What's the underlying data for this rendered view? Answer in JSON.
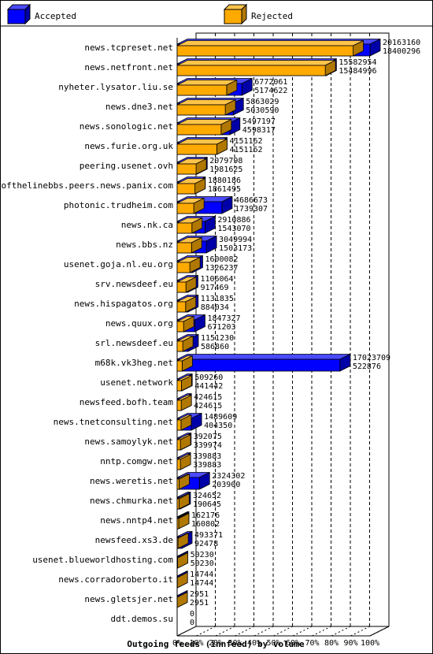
{
  "colors": {
    "accepted": "#0000ff",
    "accepted_top": "#4a4aff",
    "accepted_side": "#0000a8",
    "rejected": "#ffaa00",
    "rejected_top": "#ffc44a",
    "rejected_side": "#b07800",
    "shadow": "#a06c00"
  },
  "chart_data": {
    "type": "bar",
    "orientation": "horizontal",
    "stacked": false,
    "overlaid": true,
    "xlabel": "Outgoing feeds (innfeed) by volume",
    "xlim": [
      0,
      100
    ],
    "x_unit": "%",
    "ticks": [
      "0%",
      "10%",
      "20%",
      "30%",
      "40%",
      "50%",
      "60%",
      "70%",
      "80%",
      "90%",
      "100%"
    ],
    "legend": [
      {
        "name": "Accepted",
        "color": "#0000ff"
      },
      {
        "name": "Rejected",
        "color": "#ffaa00"
      }
    ],
    "legend_position": "top",
    "grid": true,
    "max_value": 20163160,
    "categories": [
      "news.tcpreset.net",
      "news.netfront.net",
      "nyheter.lysator.liu.se",
      "news.dne3.net",
      "news.sonologic.net",
      "news.furie.org.uk",
      "peering.usenet.ovh",
      "endofthelinebbs.peers.news.panix.com",
      "photonic.trudheim.com",
      "news.nk.ca",
      "news.bbs.nz",
      "usenet.goja.nl.eu.org",
      "srv.newsdeef.eu",
      "news.hispagatos.org",
      "news.quux.org",
      "srl.newsdeef.eu",
      "m68k.vk3heg.net",
      "usenet.network",
      "newsfeed.bofh.team",
      "news.tnetconsulting.net",
      "news.samoylyk.net",
      "nntp.comgw.net",
      "news.weretis.net",
      "news.chmurka.net",
      "news.nntp4.net",
      "newsfeed.xs3.de",
      "usenet.blueworldhosting.com",
      "news.corradoroberto.it",
      "news.gletsjer.net",
      "ddt.demos.su"
    ],
    "series": [
      {
        "name": "Accepted",
        "values": [
          20163160,
          15582954,
          6772061,
          5863029,
          5497197,
          4151162,
          2079798,
          1880186,
          4686673,
          2910886,
          3049994,
          1600082,
          1106064,
          1131835,
          1847327,
          1151230,
          17023709,
          509260,
          424615,
          1489609,
          392075,
          339883,
          2324302,
          324652,
          162176,
          493371,
          50230,
          14744,
          2951,
          0
        ]
      },
      {
        "name": "Rejected",
        "values": [
          18400296,
          15484996,
          5174622,
          5030590,
          4598317,
          4151162,
          1981625,
          1861495,
          1739307,
          1543070,
          1503173,
          1326237,
          917469,
          884034,
          671203,
          586860,
          522876,
          441442,
          424615,
          404350,
          339974,
          339883,
          203900,
          190645,
          160802,
          92478,
          50230,
          14744,
          2951,
          0
        ]
      }
    ]
  }
}
